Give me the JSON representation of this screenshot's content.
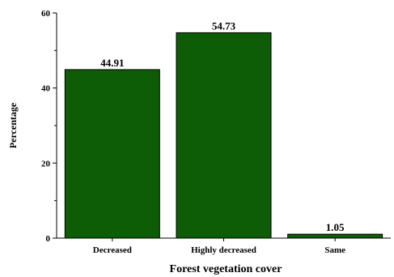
{
  "chart_data": {
    "type": "bar",
    "categories": [
      "Decreased",
      "Highly decreased",
      "Same"
    ],
    "values": [
      44.91,
      54.73,
      1.05
    ],
    "data_labels": [
      "44.91",
      "54.73",
      "1.05"
    ],
    "xlabel": "Forest vegetation cover",
    "ylabel": "Percentage",
    "ylim": [
      0,
      60
    ],
    "yticks": [
      0,
      20,
      40,
      60
    ],
    "bar_color": "#0d5c06",
    "grid": false,
    "legend": "none"
  }
}
